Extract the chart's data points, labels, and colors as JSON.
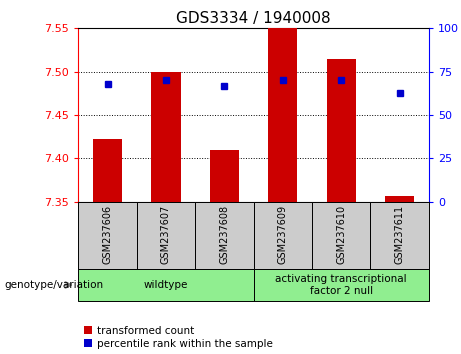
{
  "title": "GDS3334 / 1940008",
  "samples": [
    "GSM237606",
    "GSM237607",
    "GSM237608",
    "GSM237609",
    "GSM237610",
    "GSM237611"
  ],
  "red_values": [
    7.422,
    7.5,
    7.41,
    7.552,
    7.515,
    7.357
  ],
  "blue_values": [
    68,
    70,
    67,
    70,
    70,
    63
  ],
  "red_baseline": 7.35,
  "ylim_left": [
    7.35,
    7.55
  ],
  "ylim_right": [
    0,
    100
  ],
  "yticks_left": [
    7.35,
    7.4,
    7.45,
    7.5,
    7.55
  ],
  "yticks_right": [
    0,
    25,
    50,
    75,
    100
  ],
  "groups": [
    {
      "label": "wildtype",
      "start": 0,
      "end": 3
    },
    {
      "label": "activating transcriptional\nfactor 2 null",
      "start": 3,
      "end": 6
    }
  ],
  "group_label": "genotype/variation",
  "legend_red": "transformed count",
  "legend_blue": "percentile rank within the sample",
  "bar_color": "#CC0000",
  "dot_color": "#0000CC",
  "bar_width": 0.5,
  "background_color": "#FFFFFF",
  "plot_bg": "#FFFFFF",
  "tick_label_area_bg": "#CCCCCC",
  "group_area_bg": "#90EE90",
  "grid_color": "black",
  "grid_yticks": [
    7.4,
    7.45,
    7.5
  ]
}
